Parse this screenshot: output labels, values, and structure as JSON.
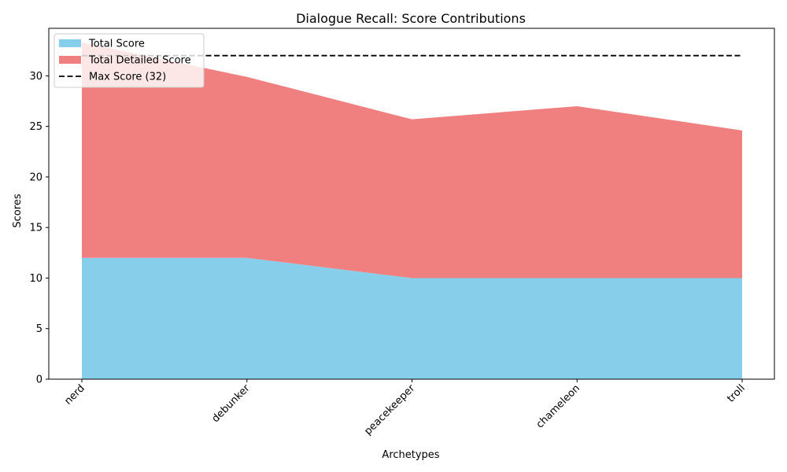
{
  "chart_data": {
    "type": "area",
    "title": "Dialogue Recall: Score Contributions",
    "xlabel": "Archetypes",
    "ylabel": "Scores",
    "categories": [
      "nerd",
      "debunker",
      "peacekeeper",
      "chameleon",
      "troll"
    ],
    "series": [
      {
        "name": "Total Score",
        "values": [
          12,
          12,
          10,
          10,
          10
        ],
        "color": "#87CEEB"
      },
      {
        "name": "Total Detailed Score",
        "values": [
          21.3,
          17.9,
          15.7,
          17.0,
          14.6
        ],
        "color": "#F08080"
      }
    ],
    "reference_line": {
      "name": "Max Score (32)",
      "value": 32,
      "color": "#000000",
      "style": "dashed"
    },
    "stacked": true,
    "ylim": [
      0,
      34.7
    ],
    "yticks": [
      0,
      5,
      10,
      15,
      20,
      25,
      30
    ],
    "legend": "top-left",
    "grid": false
  }
}
